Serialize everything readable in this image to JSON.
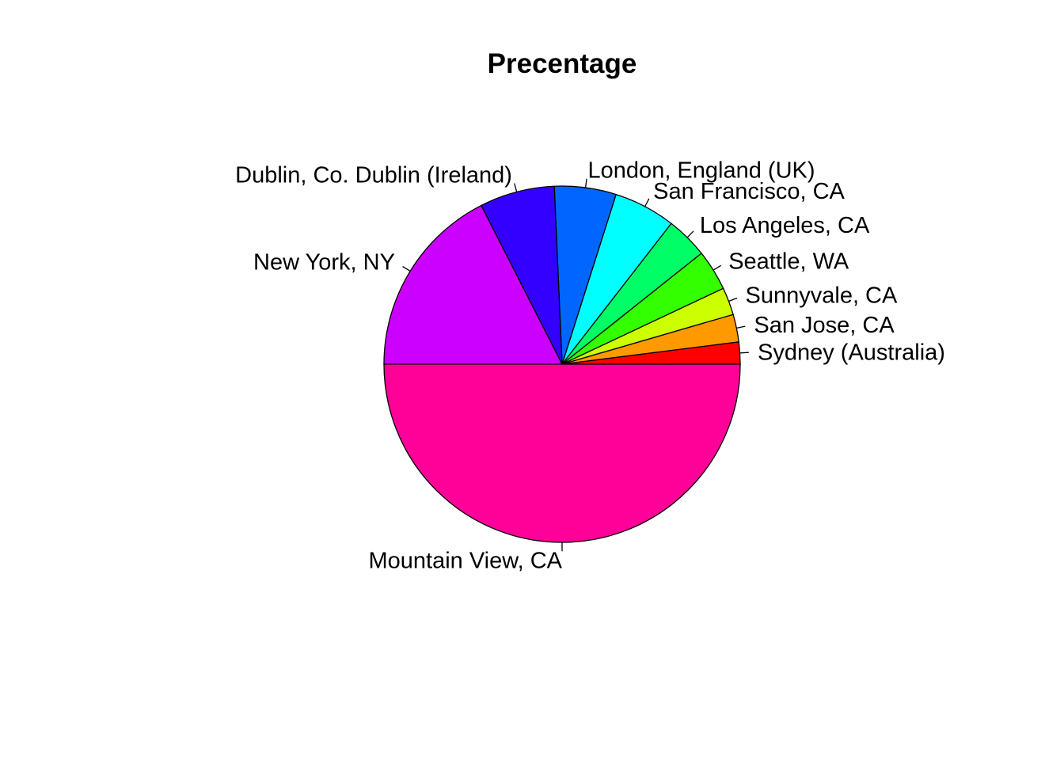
{
  "chart_data": {
    "type": "pie",
    "title": "Precentage",
    "start": "right",
    "direction": "counterclockwise",
    "slices": [
      {
        "label": "Sydney (Australia)",
        "value": 2.0,
        "color": "#FF0000"
      },
      {
        "label": "San Jose, CA",
        "value": 2.5,
        "color": "#FF9900"
      },
      {
        "label": "Sunnyvale, CA",
        "value": 2.5,
        "color": "#CCFF00"
      },
      {
        "label": "Seattle, WA",
        "value": 3.7,
        "color": "#33FF00"
      },
      {
        "label": "Los Angeles, CA",
        "value": 3.8,
        "color": "#00FF66"
      },
      {
        "label": "San Francisco, CA",
        "value": 5.6,
        "color": "#00FFFF"
      },
      {
        "label": "London, England (UK)",
        "value": 5.6,
        "color": "#0066FF"
      },
      {
        "label": "Dublin, Co. Dublin (Ireland)",
        "value": 6.8,
        "color": "#3300FF"
      },
      {
        "label": "New York, NY",
        "value": 17.5,
        "color": "#CC00FF"
      },
      {
        "label": "Mountain View, CA",
        "value": 50.0,
        "color": "#FF0099"
      }
    ]
  }
}
